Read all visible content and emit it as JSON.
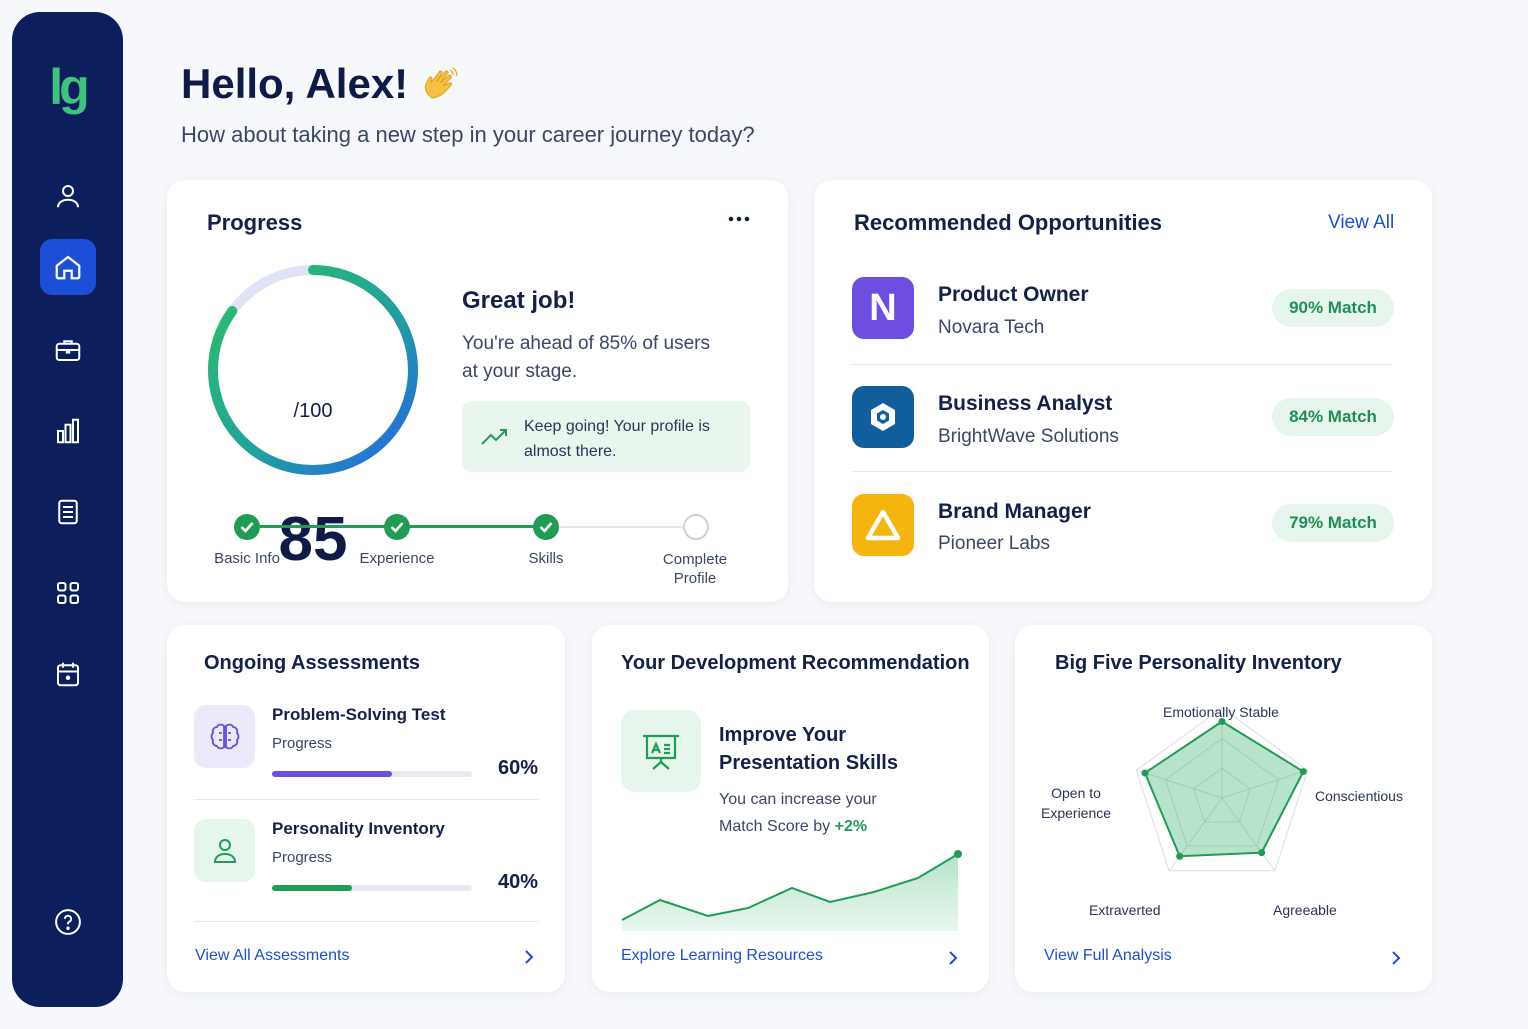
{
  "app": {
    "logo_text": "lg"
  },
  "sidebar": {
    "items": [
      {
        "icon": "user-icon"
      },
      {
        "icon": "home-icon",
        "active": true
      },
      {
        "icon": "briefcase-icon"
      },
      {
        "icon": "bar-chart-icon"
      },
      {
        "icon": "document-icon"
      },
      {
        "icon": "grid-icon"
      },
      {
        "icon": "calendar-icon"
      },
      {
        "icon": "help-icon"
      }
    ]
  },
  "header": {
    "greeting": "Hello, Alex!",
    "greeting_emoji": "waving-hand-icon",
    "subtitle": "How about taking a new step in your career journey today?"
  },
  "progress": {
    "title": "Progress",
    "menu_icon": "more-horizontal-icon",
    "score": "85",
    "score_max": "/100",
    "score_value": 85,
    "headline": "Great job!",
    "message_line1": "You're ahead of 85% of users",
    "message_line2": "at your stage.",
    "tip_line1": "Keep going! Your profile is",
    "tip_line2": "almost there.",
    "steps": [
      {
        "label": "Basic Info",
        "done": true
      },
      {
        "label": "Experience",
        "done": true
      },
      {
        "label": "Skills",
        "done": true
      },
      {
        "label_line1": "Complete",
        "label_line2": "Profile",
        "done": false
      }
    ]
  },
  "recommended": {
    "title": "Recommended Opportunities",
    "view_all": "View All",
    "items": [
      {
        "role": "Product Owner",
        "company": "Novara Tech",
        "match": "90% Match",
        "logo_letter": "N",
        "logo_color": "#6d4ee0"
      },
      {
        "role": "Business Analyst",
        "company": "BrightWave Solutions",
        "match": "84% Match",
        "logo_color": "#115e9c"
      },
      {
        "role": "Brand Manager",
        "company": "Pioneer Labs",
        "match": "79% Match",
        "logo_color": "#f5b50f"
      }
    ]
  },
  "assessments": {
    "title": "Ongoing Assessments",
    "items": [
      {
        "name": "Problem-Solving Test",
        "progress_label": "Progress",
        "percent": "60%",
        "value": 0.6,
        "color": "#6d4ee0",
        "icon": "brain-icon"
      },
      {
        "name": "Personality Inventory",
        "progress_label": "Progress",
        "percent": "40%",
        "value": 0.4,
        "color": "#1f9d55",
        "icon": "person-icon"
      }
    ],
    "link": "View All Assessments"
  },
  "development": {
    "title": "Your Development Recommendation",
    "headline_line1": "Improve Your",
    "headline_line2": "Presentation Skills",
    "desc_line1": "You can increase your",
    "desc_line2_prefix": "Match Score by",
    "desc_highlight": "+2%",
    "link": "Explore Learning Resources",
    "icon": "presentation-icon"
  },
  "personality": {
    "title": "Big Five Personality Inventory",
    "traits": [
      {
        "label": "Emotionally Stable",
        "value": 0.85
      },
      {
        "label": "Conscientious",
        "value": 0.95
      },
      {
        "label": "Agreeable",
        "value": 0.75
      },
      {
        "label": "Extraverted",
        "value": 0.8
      },
      {
        "label_line1": "Open to",
        "label_line2": "Experience",
        "value": 0.9
      }
    ],
    "link": "View Full Analysis"
  }
}
